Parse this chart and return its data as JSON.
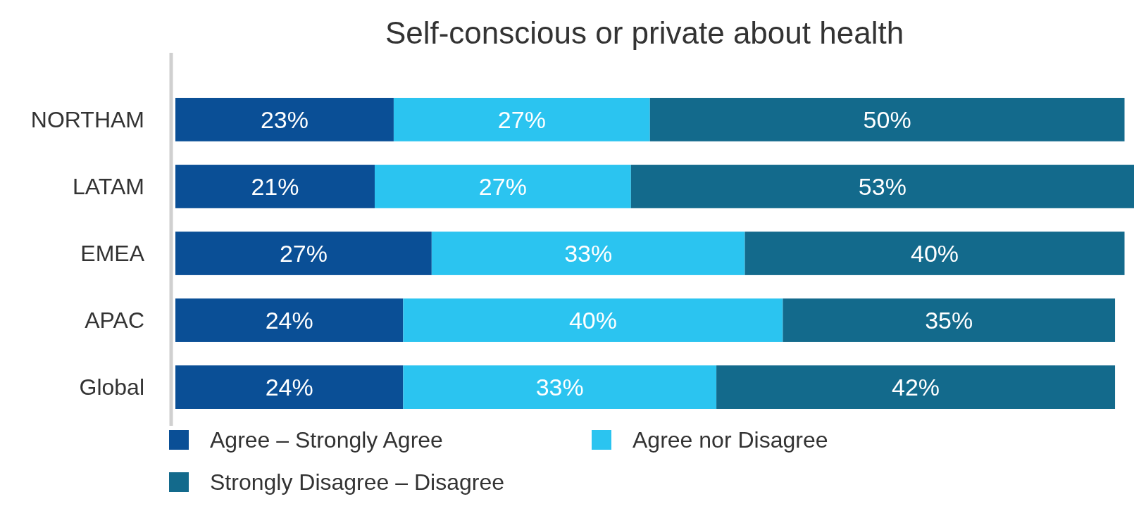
{
  "chart_data": {
    "type": "bar",
    "orientation": "horizontal",
    "stacked": true,
    "title": "Self-conscious or private about health",
    "categories": [
      "NORTHAM",
      "LATAM",
      "EMEA",
      "APAC",
      "Global"
    ],
    "series": [
      {
        "name": "Agree – Strongly Agree",
        "color": "#0a4f96",
        "values": [
          23,
          21,
          27,
          24,
          24
        ],
        "value_labels": [
          "23%",
          "21%",
          "27%",
          "24%",
          "24%"
        ]
      },
      {
        "name": "Agree nor Disagree",
        "color": "#2bc4f0",
        "values": [
          27,
          27,
          33,
          40,
          33
        ],
        "value_labels": [
          "27%",
          "27%",
          "33%",
          "40%",
          "33%"
        ]
      },
      {
        "name": "Strongly Disagree – Disagree",
        "color": "#136a8c",
        "values": [
          50,
          53,
          40,
          35,
          42
        ],
        "value_labels": [
          "50%",
          "53%",
          "40%",
          "35%",
          "42%"
        ]
      }
    ],
    "legend": "bottom"
  }
}
